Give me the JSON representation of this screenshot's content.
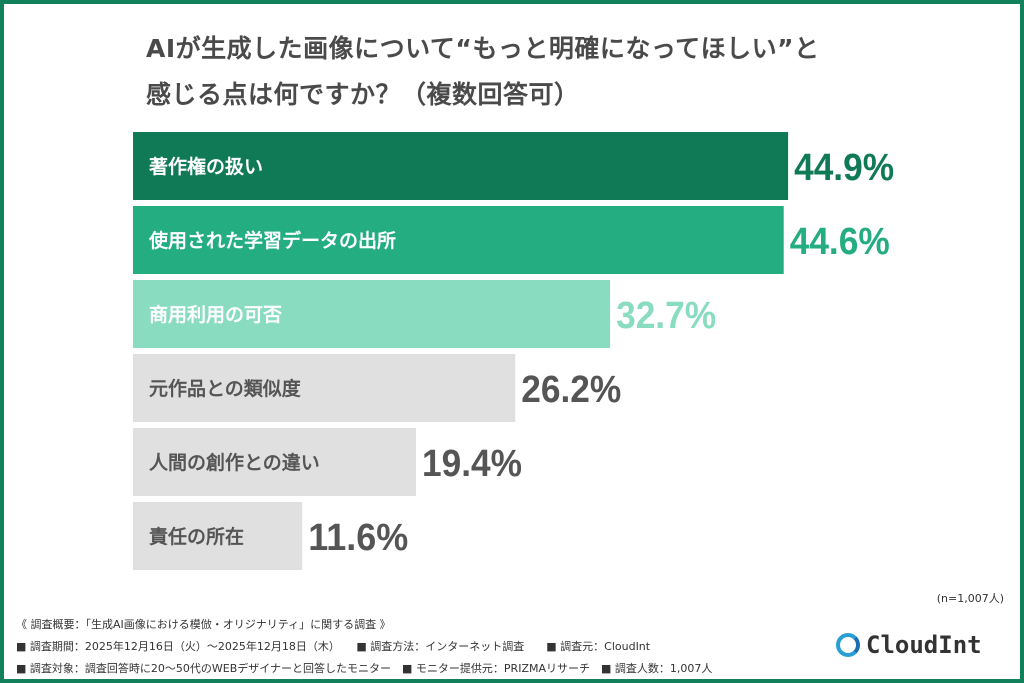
{
  "chart_data": {
    "type": "bar",
    "orientation": "horizontal",
    "title_lines": [
      "AIが生成した画像について“もっと明確になってほしい”と",
      "感じる点は何ですか？（複数回答可）"
    ],
    "categories": [
      "著作権の扱い",
      "使用された学習データの出所",
      "商用利用の可否",
      "元作品との類似度",
      "人間の創作との違い",
      "責任の所在"
    ],
    "values": [
      44.9,
      44.6,
      32.7,
      26.2,
      19.4,
      11.6
    ],
    "value_labels": [
      "44.9%",
      "44.6%",
      "32.7%",
      "26.2%",
      "19.4%",
      "11.6%"
    ],
    "unit": "%",
    "bar_colors": [
      "#0f7a55",
      "#23ad80",
      "#8adcc0",
      "#e0e0e0",
      "#e0e0e0",
      "#e0e0e0"
    ],
    "label_colors": [
      "#ffffff",
      "#ffffff",
      "#ffffff",
      "#555555",
      "#555555",
      "#555555"
    ],
    "value_colors": [
      "#0f7a55",
      "#23ad80",
      "#8adcc0",
      "#555555",
      "#555555",
      "#555555"
    ],
    "grid": false,
    "legend": "none"
  },
  "sample_note": "(n=1,007人)",
  "footer": {
    "line1": "《 調査概要：「生成AI画像における模倣・オリジナリティ」に関する調査 》",
    "line2": "■ 調査期間：2025年12月16日（火）～2025年12月18日（木）　　■ 調査方法：インターネット調査　　■ 調査元：CloudInt",
    "line3": "■ 調査対象：調査回答時に20～50代のWEBデザイナーと回答したモニター　■ モニター提供元：PRIZMAリサーチ　■ 調査人数：1,007人"
  },
  "logo": {
    "text": "CloudInt"
  },
  "colors": {
    "frame": "#12805a",
    "title": "#4a4a4a"
  }
}
